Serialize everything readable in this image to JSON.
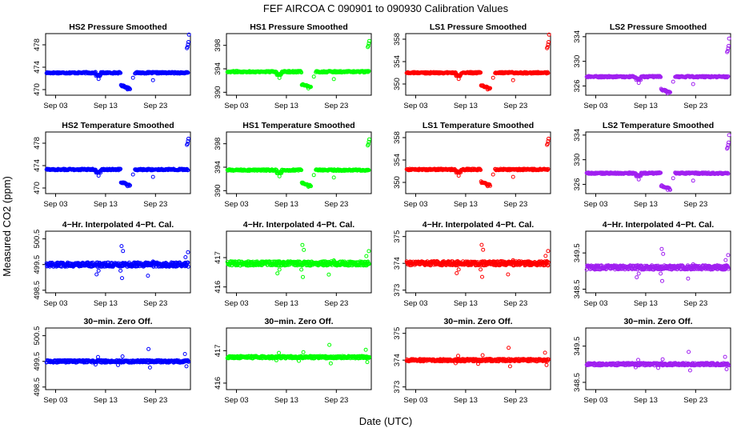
{
  "figure": {
    "title": "FEF   AIRCOA C   090901 to 090930   Calibration Values",
    "xlabel": "Date (UTC)",
    "ylabel": "Measured CO2 (ppm)"
  },
  "colors": {
    "HS2": "#0000ff",
    "HS1": "#00ff00",
    "LS1": "#ff0000",
    "LS2": "#a020f0"
  },
  "chart_data": [
    {
      "type": "scatter",
      "title": "HS2 Pressure Smoothed",
      "series_key": "HS2",
      "base": 473,
      "ylim": [
        469,
        480
      ],
      "yticks": [
        470,
        474,
        478
      ],
      "xticks": [
        "Sep 03",
        "Sep 13",
        "Sep 23"
      ],
      "xlim": [
        1,
        30
      ],
      "pattern": "pressure"
    },
    {
      "type": "scatter",
      "title": "HS1 Pressure Smoothed",
      "series_key": "HS1",
      "base": 393.5,
      "ylim": [
        389.5,
        400
      ],
      "yticks": [
        390,
        394,
        398
      ],
      "xticks": [
        "Sep 03",
        "Sep 13",
        "Sep 23"
      ],
      "xlim": [
        1,
        30
      ],
      "pattern": "pressure"
    },
    {
      "type": "scatter",
      "title": "LS1 Pressure Smoothed",
      "series_key": "LS1",
      "base": 352,
      "ylim": [
        348,
        359
      ],
      "yticks": [
        350,
        354,
        358
      ],
      "xticks": [
        "Sep 03",
        "Sep 13",
        "Sep 23"
      ],
      "xlim": [
        1,
        30
      ],
      "pattern": "pressure"
    },
    {
      "type": "scatter",
      "title": "LS2 Pressure Smoothed",
      "series_key": "LS2",
      "base": 327.5,
      "ylim": [
        324.5,
        334.5
      ],
      "yticks": [
        326,
        330,
        334
      ],
      "xticks": [
        "Sep 03",
        "Sep 13",
        "Sep 23"
      ],
      "xlim": [
        1,
        30
      ],
      "pattern": "pressure"
    },
    {
      "type": "scatter",
      "title": "HS2 Temperature Smoothed",
      "series_key": "HS2",
      "base": 473.3,
      "ylim": [
        469,
        480
      ],
      "yticks": [
        470,
        474,
        478
      ],
      "xticks": [
        "Sep 03",
        "Sep 13",
        "Sep 23"
      ],
      "xlim": [
        1,
        30
      ],
      "pattern": "pressure"
    },
    {
      "type": "scatter",
      "title": "HS1 Temperature Smoothed",
      "series_key": "HS1",
      "base": 393.5,
      "ylim": [
        389.5,
        400
      ],
      "yticks": [
        390,
        394,
        398
      ],
      "xticks": [
        "Sep 03",
        "Sep 13",
        "Sep 23"
      ],
      "xlim": [
        1,
        30
      ],
      "pattern": "pressure"
    },
    {
      "type": "scatter",
      "title": "LS1 Temperature Smoothed",
      "series_key": "LS1",
      "base": 352.3,
      "ylim": [
        348,
        359
      ],
      "yticks": [
        350,
        354,
        358
      ],
      "xticks": [
        "Sep 03",
        "Sep 13",
        "Sep 23"
      ],
      "xlim": [
        1,
        30
      ],
      "pattern": "pressure"
    },
    {
      "type": "scatter",
      "title": "LS2 Temperature Smoothed",
      "series_key": "LS2",
      "base": 327.8,
      "ylim": [
        324.5,
        334.5
      ],
      "yticks": [
        326,
        330,
        334
      ],
      "xticks": [
        "Sep 03",
        "Sep 13",
        "Sep 23"
      ],
      "xlim": [
        1,
        30
      ],
      "pattern": "pressure"
    },
    {
      "type": "scatter",
      "title": "4−Hr. Interpolated 4−Pt. Cal.",
      "series_key": "HS2",
      "base": 499.5,
      "ylim": [
        498.4,
        500.8
      ],
      "yticks": [
        498.5,
        499.5,
        500.5
      ],
      "xticks": [
        "Sep 03",
        "Sep 13",
        "Sep 23"
      ],
      "xlim": [
        1,
        30
      ],
      "pattern": "noisy"
    },
    {
      "type": "scatter",
      "title": "4−Hr. Interpolated 4−Pt. Cal.",
      "series_key": "HS1",
      "base": 416.8,
      "ylim": [
        415.8,
        417.9
      ],
      "yticks": [
        416.0,
        417.0
      ],
      "xticks": [
        "Sep 03",
        "Sep 13",
        "Sep 23"
      ],
      "xlim": [
        1,
        30
      ],
      "pattern": "noisy"
    },
    {
      "type": "scatter",
      "title": "4−Hr. Interpolated 4−Pt. Cal.",
      "series_key": "LS1",
      "base": 374.0,
      "ylim": [
        372.9,
        375.2
      ],
      "yticks": [
        373.0,
        374.0,
        375.0
      ],
      "xticks": [
        "Sep 03",
        "Sep 13",
        "Sep 23"
      ],
      "xlim": [
        1,
        30
      ],
      "pattern": "noisy"
    },
    {
      "type": "scatter",
      "title": "4−Hr. Interpolated 4−Pt. Cal.",
      "series_key": "LS2",
      "base": 349.1,
      "ylim": [
        348.4,
        350.1
      ],
      "yticks": [
        348.5,
        349.5
      ],
      "xticks": [
        "Sep 03",
        "Sep 13",
        "Sep 23"
      ],
      "xlim": [
        1,
        30
      ],
      "pattern": "noisy"
    },
    {
      "type": "scatter",
      "title": "30−min. Zero Off.",
      "series_key": "HS2",
      "base": 499.5,
      "ylim": [
        498.4,
        500.8
      ],
      "yticks": [
        498.5,
        499.5,
        500.5
      ],
      "xticks": [
        "Sep 03",
        "Sep 13",
        "Sep 23"
      ],
      "xlim": [
        1,
        30
      ],
      "pattern": "flat"
    },
    {
      "type": "scatter",
      "title": "30−min. Zero Off.",
      "series_key": "HS1",
      "base": 416.8,
      "ylim": [
        415.8,
        417.7
      ],
      "yticks": [
        416.0,
        417.0
      ],
      "xticks": [
        "Sep 03",
        "Sep 13",
        "Sep 23"
      ],
      "xlim": [
        1,
        30
      ],
      "pattern": "flat"
    },
    {
      "type": "scatter",
      "title": "30−min. Zero Off.",
      "series_key": "LS1",
      "base": 374.0,
      "ylim": [
        372.9,
        375.2
      ],
      "yticks": [
        373.0,
        374.0,
        375.0
      ],
      "xticks": [
        "Sep 03",
        "Sep 13",
        "Sep 23"
      ],
      "xlim": [
        1,
        30
      ],
      "pattern": "flat"
    },
    {
      "type": "scatter",
      "title": "30−min. Zero Off.",
      "series_key": "LS2",
      "base": 349.0,
      "ylim": [
        348.3,
        350.0
      ],
      "yticks": [
        348.5,
        349.5
      ],
      "xticks": [
        "Sep 03",
        "Sep 13",
        "Sep 23"
      ],
      "xlim": [
        1,
        30
      ],
      "pattern": "flat"
    }
  ]
}
